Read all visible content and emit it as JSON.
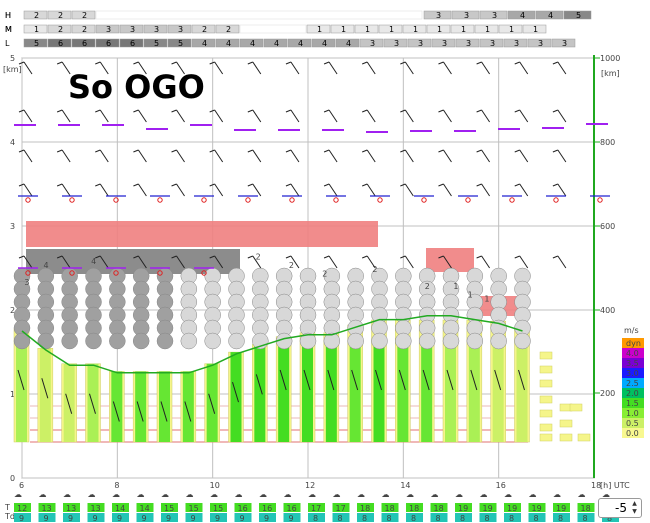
{
  "title": "So OGO",
  "cloud_levels": {
    "H": {
      "label": "H",
      "left": [
        "2",
        "2",
        "2"
      ],
      "right": [
        "3",
        "3",
        "3",
        "4",
        "4",
        "5"
      ]
    },
    "M": {
      "label": "M",
      "left": [
        "1",
        "2",
        "2",
        "3",
        "3",
        "3",
        "3",
        "2",
        "2"
      ],
      "right": [
        "1",
        "1",
        "1",
        "1",
        "1",
        "1",
        "1",
        "1",
        "1",
        "1"
      ]
    },
    "L": {
      "label": "L",
      "values": [
        "5",
        "6",
        "6",
        "6",
        "6",
        "5",
        "5",
        "4",
        "4",
        "4",
        "4",
        "4",
        "4",
        "4",
        "3",
        "3",
        "3",
        "3",
        "3",
        "3",
        "3",
        "3",
        "3"
      ]
    }
  },
  "colors": {
    "accent_green": "#1fa81f",
    "bar_yellow": "#f5f58a",
    "bar_green": "#44dd22",
    "cloud_gray": "#c8c8c8",
    "dark_gray": "#8c8c8c",
    "red_band": "#f08080",
    "purple_line": "#a020f0",
    "temp_green": "#22cc22",
    "td_teal": "#22c5b5"
  },
  "axes": {
    "left_unit": "[km]",
    "left_ticks": [
      "0",
      "1",
      "2",
      "3",
      "4",
      "5"
    ],
    "right_unit": "[km]",
    "right_ticks": [
      "200",
      "400",
      "600",
      "800",
      "1000"
    ],
    "x_ticks": [
      "6",
      "8",
      "10",
      "12",
      "14",
      "16",
      "18"
    ],
    "x_unit": "[h] UTC"
  },
  "legend": {
    "unit": "m/s",
    "entries": [
      {
        "label": "dyn",
        "color": "#ff9900"
      },
      {
        "label": "4.0",
        "color": "#cc00cc"
      },
      {
        "label": "3.5",
        "color": "#7a00d4"
      },
      {
        "label": "3.0",
        "color": "#1a1aff"
      },
      {
        "label": "2.5",
        "color": "#00aaff"
      },
      {
        "label": "2.0",
        "color": "#00c060"
      },
      {
        "label": "1.5",
        "color": "#44dd22"
      },
      {
        "label": "1.0",
        "color": "#88ee33"
      },
      {
        "label": "0.5",
        "color": "#ccf066"
      },
      {
        "label": "0.0",
        "color": "#f8f890"
      }
    ]
  },
  "chart_data": {
    "type": "bar",
    "x_hours": [
      6,
      6.5,
      7,
      7.5,
      8,
      8.5,
      9,
      9.5,
      10,
      10.5,
      11,
      11.5,
      12,
      12.5,
      13,
      13.5,
      14,
      14.5,
      15,
      15.5,
      16,
      16.5,
      17
    ],
    "thermal_top_m": [
      300,
      250,
      210,
      210,
      190,
      190,
      190,
      190,
      210,
      240,
      260,
      280,
      290,
      290,
      310,
      330,
      330,
      340,
      340,
      330,
      320,
      300,
      0
    ],
    "climb_rate_bars": [
      1.0,
      0.5,
      0.5,
      1.0,
      1.5,
      1.5,
      1.5,
      1.5,
      1.5,
      2.0,
      2.0,
      2.0,
      2.0,
      2.0,
      1.5,
      2.0,
      1.5,
      1.5,
      1.0,
      1.0,
      0.5,
      0.5,
      0.0
    ],
    "wind_labels": [
      {
        "text": "4",
        "hour": 6.45,
        "km": 2.5
      },
      {
        "text": "4",
        "hour": 7.45,
        "km": 2.55
      },
      {
        "text": "3",
        "hour": 6.05,
        "km": 2.3
      },
      {
        "text": "2",
        "hour": 10.9,
        "km": 2.6
      },
      {
        "text": "2",
        "hour": 11.6,
        "km": 2.5
      },
      {
        "text": "2",
        "hour": 12.3,
        "km": 2.4
      },
      {
        "text": "2",
        "hour": 13.35,
        "km": 2.45
      },
      {
        "text": "2",
        "hour": 14.45,
        "km": 2.25
      },
      {
        "text": "1",
        "hour": 15.05,
        "km": 2.25
      },
      {
        "text": "1",
        "hour": 15.35,
        "km": 2.15
      },
      {
        "text": "1",
        "hour": 15.7,
        "km": 2.1
      }
    ],
    "T": [
      "12",
      "13",
      "13",
      "13",
      "14",
      "14",
      "15",
      "15",
      "15",
      "16",
      "16",
      "16",
      "17",
      "17",
      "18",
      "18",
      "18",
      "18",
      "19",
      "19",
      "19",
      "19",
      "19",
      "18",
      "18"
    ],
    "Td": [
      "9",
      "9",
      "9",
      "9",
      "9",
      "9",
      "9",
      "9",
      "9",
      "9",
      "9",
      "9",
      "8",
      "8",
      "8",
      "8",
      "8",
      "8",
      "8",
      "8",
      "8",
      "8",
      "8",
      "8",
      "8"
    ],
    "x_range": [
      6,
      18
    ],
    "y_range_km": [
      0,
      5
    ],
    "right_axis_range": [
      0,
      1000
    ]
  },
  "bottom_labels": {
    "T": "T",
    "Td": "Td"
  },
  "stepper_value": "-5"
}
